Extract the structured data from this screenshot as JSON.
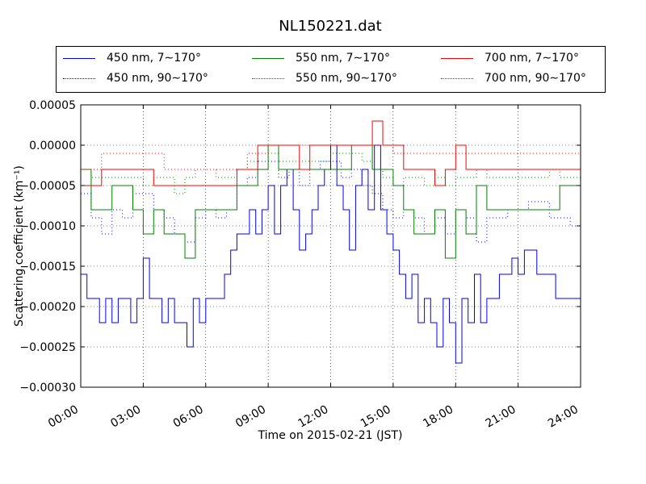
{
  "chart_data": {
    "type": "line",
    "title": "NL150221.dat",
    "xlabel": "Time on 2015-02-21 (JST)",
    "ylabel": "Scattering coefficient (km⁻¹)",
    "xlim": [
      0,
      24
    ],
    "ylim": [
      -0.0003,
      5e-05
    ],
    "grid": true,
    "legend_position": "top",
    "x_ticks": [
      "00:00",
      "03:00",
      "06:00",
      "09:00",
      "12:00",
      "15:00",
      "18:00",
      "21:00",
      "24:00"
    ],
    "y_ticks": [
      "0.00005",
      "0.00000",
      "−0.00005",
      "−0.00010",
      "−0.00015",
      "−0.00020",
      "−0.00025",
      "−0.00030"
    ],
    "series": [
      {
        "name": "450 nm, 7∼170°",
        "color": "#0000ff",
        "style": "solid",
        "x": [
          0.0,
          0.3,
          0.6,
          0.9,
          1.2,
          1.5,
          1.8,
          2.1,
          2.4,
          2.7,
          3.0,
          3.3,
          3.6,
          3.9,
          4.2,
          4.5,
          4.8,
          5.1,
          5.4,
          5.7,
          6.0,
          6.3,
          6.6,
          6.9,
          7.2,
          7.5,
          7.8,
          8.1,
          8.4,
          8.7,
          9.0,
          9.3,
          9.6,
          9.9,
          10.2,
          10.5,
          10.8,
          11.1,
          11.4,
          11.7,
          12.0,
          12.3,
          12.6,
          12.9,
          13.2,
          13.5,
          13.8,
          14.1,
          14.4,
          14.7,
          15.0,
          15.3,
          15.6,
          15.9,
          16.2,
          16.5,
          16.8,
          17.1,
          17.4,
          17.7,
          18.0,
          18.3,
          18.6,
          18.9,
          19.2,
          19.5,
          19.8,
          20.1,
          20.4,
          20.7,
          21.0,
          21.3,
          21.6,
          21.9,
          22.2,
          22.5,
          22.8,
          23.1,
          23.4,
          23.7,
          24.0
        ],
        "y": [
          -0.00016,
          -0.00019,
          -0.00019,
          -0.00022,
          -0.00019,
          -0.00022,
          -0.00019,
          -0.00019,
          -0.00022,
          -0.00019,
          -0.00014,
          -0.00019,
          -0.00019,
          -0.00022,
          -0.00019,
          -0.00022,
          -0.00022,
          -0.00025,
          -0.00019,
          -0.00022,
          -0.00019,
          -0.00019,
          -0.00019,
          -0.00016,
          -0.00013,
          -0.00011,
          -0.00011,
          -8e-05,
          -0.00011,
          -8e-05,
          -5e-05,
          -0.00011,
          -5e-05,
          -3e-05,
          -8e-05,
          -0.00013,
          -0.00011,
          -8e-05,
          -5e-05,
          -3e-05,
          0.0,
          -5e-05,
          -8e-05,
          -0.00013,
          -5e-05,
          -3e-05,
          -8e-05,
          0.0,
          -8e-05,
          -0.00011,
          -0.00013,
          -0.00016,
          -0.00019,
          -0.00016,
          -0.00022,
          -0.00019,
          -0.00022,
          -0.00025,
          -0.00019,
          -0.00022,
          -0.00027,
          -0.00019,
          -0.00022,
          -0.00016,
          -0.00022,
          -0.00019,
          -0.00019,
          -0.00016,
          -0.00016,
          -0.00014,
          -0.00016,
          -0.00013,
          -0.00013,
          -0.00016,
          -0.00016,
          -0.00016,
          -0.00019,
          -0.00019,
          -0.00019,
          -0.00019,
          -0.00019
        ]
      },
      {
        "name": "450 nm, 90∼170°",
        "color": "#0000ff",
        "style": "dotted",
        "x": [
          0.0,
          0.5,
          1.0,
          1.5,
          2.0,
          2.5,
          3.0,
          3.5,
          4.0,
          4.5,
          5.0,
          5.5,
          6.0,
          6.5,
          7.0,
          7.5,
          8.0,
          8.5,
          9.0,
          9.5,
          10.0,
          10.5,
          11.0,
          11.5,
          12.0,
          12.5,
          13.0,
          13.5,
          14.0,
          14.5,
          15.0,
          15.5,
          16.0,
          16.5,
          17.0,
          17.5,
          18.0,
          18.5,
          19.0,
          19.5,
          20.0,
          20.5,
          21.0,
          21.5,
          22.0,
          22.5,
          23.0,
          23.5,
          24.0
        ],
        "y": [
          -6e-05,
          -9e-05,
          -0.00011,
          -8e-05,
          -9e-05,
          -6e-05,
          -6e-05,
          -8e-05,
          -9e-05,
          -0.00011,
          -0.00012,
          -9e-05,
          -8e-05,
          -9e-05,
          -8e-05,
          -5e-05,
          -4e-05,
          -2e-05,
          -2e-05,
          -4e-05,
          -3e-05,
          -5e-05,
          -3e-05,
          -2e-05,
          -2e-05,
          -4e-05,
          -3e-05,
          -5e-05,
          -6e-05,
          -8e-05,
          -9e-05,
          -8e-05,
          -9e-05,
          -0.00011,
          -9e-05,
          -0.00011,
          -8e-05,
          -9e-05,
          -0.00012,
          -9e-05,
          -9e-05,
          -8e-05,
          -8e-05,
          -7e-05,
          -7e-05,
          -9e-05,
          -9e-05,
          -0.0001,
          -0.0001
        ]
      },
      {
        "name": "550 nm, 7∼170°",
        "color": "#008000",
        "style": "solid",
        "x": [
          0.0,
          0.5,
          1.0,
          1.5,
          2.0,
          2.5,
          3.0,
          3.5,
          4.0,
          4.5,
          5.0,
          5.5,
          6.0,
          6.5,
          7.0,
          7.5,
          8.0,
          8.5,
          9.0,
          9.5,
          10.0,
          10.5,
          11.0,
          11.5,
          12.0,
          12.5,
          13.0,
          13.5,
          14.0,
          14.5,
          15.0,
          15.5,
          16.0,
          16.5,
          17.0,
          17.5,
          18.0,
          18.5,
          19.0,
          19.5,
          20.0,
          20.5,
          21.0,
          21.5,
          22.0,
          22.5,
          23.0,
          23.5,
          24.0
        ],
        "y": [
          -3e-05,
          -8e-05,
          -8e-05,
          -5e-05,
          -5e-05,
          -8e-05,
          -0.00011,
          -8e-05,
          -0.00011,
          -0.00011,
          -0.00014,
          -8e-05,
          -8e-05,
          -8e-05,
          -8e-05,
          -5e-05,
          -5e-05,
          -3e-05,
          0.0,
          -3e-05,
          -3e-05,
          -3e-05,
          -3e-05,
          -3e-05,
          -3e-05,
          -3e-05,
          0.0,
          0.0,
          -3e-05,
          -3e-05,
          -5e-05,
          -8e-05,
          -0.00011,
          -0.00011,
          -8e-05,
          -0.00014,
          -8e-05,
          -0.00011,
          -5e-05,
          -8e-05,
          -8e-05,
          -8e-05,
          -8e-05,
          -8e-05,
          -8e-05,
          -8e-05,
          -5e-05,
          -5e-05,
          -5e-05
        ]
      },
      {
        "name": "550 nm, 90∼170°",
        "color": "#008000",
        "style": "dotted",
        "x": [
          0.0,
          0.5,
          1.0,
          1.5,
          2.0,
          2.5,
          3.0,
          3.5,
          4.0,
          4.5,
          5.0,
          5.5,
          6.0,
          6.5,
          7.0,
          7.5,
          8.0,
          8.5,
          9.0,
          9.5,
          10.0,
          10.5,
          11.0,
          11.5,
          12.0,
          12.5,
          13.0,
          13.5,
          14.0,
          14.5,
          15.0,
          15.5,
          16.0,
          16.5,
          17.0,
          17.5,
          18.0,
          18.5,
          19.0,
          19.5,
          20.0,
          20.5,
          21.0,
          21.5,
          22.0,
          22.5,
          23.0,
          23.5,
          24.0
        ],
        "y": [
          -3e-05,
          -4e-05,
          -4e-05,
          -4e-05,
          -4e-05,
          -4e-05,
          -5e-05,
          -4e-05,
          -4e-05,
          -6e-05,
          -4e-05,
          -3e-05,
          -3e-05,
          -4e-05,
          -4e-05,
          -3e-05,
          -2e-05,
          -1e-05,
          -1e-05,
          -2e-05,
          -2e-05,
          -2e-05,
          -2e-05,
          -2e-05,
          -1e-05,
          -1e-05,
          -1e-05,
          -2e-05,
          -3e-05,
          -4e-05,
          -5e-05,
          -4e-05,
          -4e-05,
          -5e-05,
          -4e-05,
          -5e-05,
          -4e-05,
          -4e-05,
          -3e-05,
          -4e-05,
          -4e-05,
          -4e-05,
          -4e-05,
          -4e-05,
          -4e-05,
          -3e-05,
          -4e-05,
          -4e-05,
          -4e-05
        ]
      },
      {
        "name": "700 nm, 7∼170°",
        "color": "#ff0000",
        "style": "solid",
        "x": [
          0.0,
          0.5,
          1.0,
          1.5,
          2.0,
          2.5,
          3.0,
          3.5,
          4.0,
          4.5,
          5.0,
          5.5,
          6.0,
          6.5,
          7.0,
          7.5,
          8.0,
          8.5,
          9.0,
          9.5,
          10.0,
          10.5,
          11.0,
          11.5,
          12.0,
          12.5,
          13.0,
          13.5,
          14.0,
          14.5,
          15.0,
          15.5,
          16.0,
          16.5,
          17.0,
          17.5,
          18.0,
          18.5,
          19.0,
          19.5,
          20.0,
          20.5,
          21.0,
          21.5,
          22.0,
          22.5,
          23.0,
          23.5,
          24.0
        ],
        "y": [
          -5e-05,
          -5e-05,
          -3e-05,
          -3e-05,
          -3e-05,
          -3e-05,
          -3e-05,
          -5e-05,
          -5e-05,
          -5e-05,
          -5e-05,
          -5e-05,
          -5e-05,
          -5e-05,
          -5e-05,
          -3e-05,
          -3e-05,
          0.0,
          0.0,
          0.0,
          0.0,
          -3e-05,
          0.0,
          0.0,
          0.0,
          0.0,
          0.0,
          0.0,
          3e-05,
          0.0,
          0.0,
          -3e-05,
          -3e-05,
          -3e-05,
          -5e-05,
          -3e-05,
          0.0,
          -3e-05,
          -3e-05,
          -3e-05,
          -3e-05,
          -3e-05,
          -3e-05,
          -3e-05,
          -3e-05,
          -3e-05,
          -3e-05,
          -3e-05,
          -3e-05
        ]
      },
      {
        "name": "700 nm, 90∼170°",
        "color": "#ff0000",
        "style": "dotted",
        "x": [
          0.0,
          1.0,
          2.0,
          3.0,
          4.0,
          5.0,
          6.0,
          7.0,
          8.0,
          9.0,
          10.0,
          11.0,
          12.0,
          13.0,
          14.0,
          15.0,
          16.0,
          17.0,
          18.0,
          19.0,
          20.0,
          21.0,
          22.0,
          23.0,
          24.0
        ],
        "y": [
          -3e-05,
          -1e-05,
          -1e-05,
          -1e-05,
          -3e-05,
          -3e-05,
          -3e-05,
          -3e-05,
          -1e-05,
          0.0,
          0.0,
          0.0,
          0.0,
          0.0,
          0.0,
          -1e-05,
          -1e-05,
          -1e-05,
          -1e-05,
          -1e-05,
          -1e-05,
          -1e-05,
          -1e-05,
          -1e-05,
          -1e-05
        ]
      }
    ]
  }
}
